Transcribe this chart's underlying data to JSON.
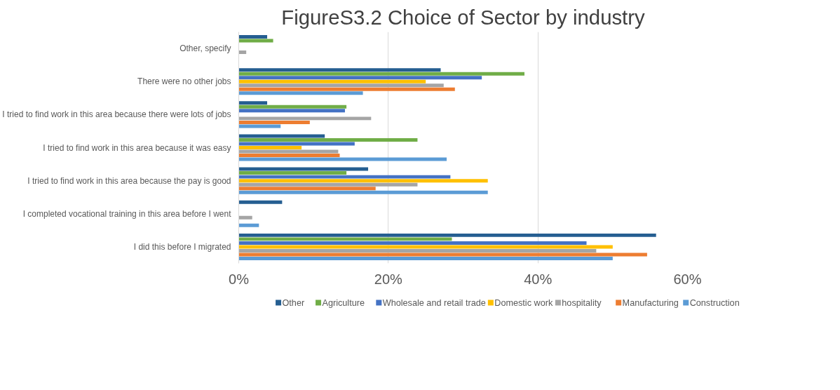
{
  "chart_data": {
    "type": "bar",
    "orientation": "horizontal",
    "title": "FigureS3.2 Choice of Sector by industry",
    "categories": [
      "Other, specify",
      "There were no other jobs",
      "I tried to find work in this area because there were lots of jobs",
      "I tried to find work in this area because it was easy",
      "I tried to find work in this area because the pay is good",
      "I completed vocational training in this area before I went",
      "I did this before I migrated"
    ],
    "series": [
      {
        "name": "Other",
        "color": "#255e91",
        "values": [
          3.8,
          27.0,
          3.8,
          11.5,
          17.3,
          5.8,
          55.8
        ]
      },
      {
        "name": "Agriculture",
        "color": "#70ad47",
        "values": [
          4.6,
          38.2,
          14.4,
          23.9,
          14.4,
          0,
          28.5
        ]
      },
      {
        "name": "Wholesale and retail trade",
        "color": "#4472c4",
        "values": [
          0,
          32.5,
          14.2,
          15.5,
          28.3,
          0,
          46.5
        ]
      },
      {
        "name": "Domestic work",
        "color": "#ffc000",
        "values": [
          0,
          25.0,
          0,
          8.4,
          33.3,
          0,
          50.0
        ]
      },
      {
        "name": "hospitality",
        "color": "#a5a5a5",
        "values": [
          1.0,
          27.4,
          17.7,
          13.3,
          23.9,
          1.8,
          47.8
        ]
      },
      {
        "name": "Manufacturing",
        "color": "#ed7d31",
        "values": [
          0,
          28.9,
          9.5,
          13.5,
          18.3,
          0,
          54.6
        ]
      },
      {
        "name": "Construction",
        "color": "#5b9bd5",
        "values": [
          0,
          16.6,
          5.6,
          27.8,
          33.3,
          2.7,
          50.0
        ]
      }
    ],
    "xlim": [
      0,
      60
    ],
    "xticks": [
      {
        "value": 0,
        "label": "0%"
      },
      {
        "value": 20,
        "label": "20%"
      },
      {
        "value": 40,
        "label": "40%"
      },
      {
        "value": 60,
        "label": "60%"
      }
    ],
    "grid": "x",
    "legend": "bottom"
  }
}
